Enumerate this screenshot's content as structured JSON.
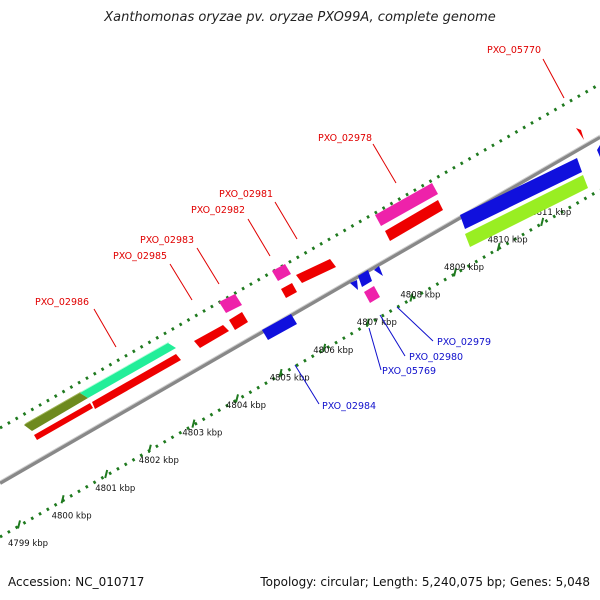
{
  "title": "Xanthomonas oryzae pv. oryzae PXO99A, complete genome",
  "footer": {
    "accession": "Accession: NC_010717",
    "summary": "Topology: circular; Length: 5,240,075 bp; Genes: 5,048"
  },
  "colors": {
    "axis": "#888888",
    "tick_track": "#1f7a1f",
    "forward_label": "#e00000",
    "reverse_label": "#1010cc",
    "red_gene": "#ee0000",
    "magenta_gene": "#ee22aa",
    "blue_gene": "#1010dd",
    "olive_gene": "#6e8a1e",
    "aqua_gene": "#22ee99",
    "lime_gene": "#99ee22"
  },
  "kbp_ticks": [
    "4799 kbp",
    "4800 kbp",
    "4801 kbp",
    "4802 kbp",
    "4803 kbp",
    "4804 kbp",
    "4805 kbp",
    "4806 kbp",
    "4807 kbp",
    "4808 kbp",
    "4809 kbp",
    "4810 kbp",
    "4811 kbp"
  ],
  "forward_labels": [
    "PXO_02986",
    "PXO_02985",
    "PXO_02983",
    "PXO_02982",
    "PXO_02981",
    "PXO_02978",
    "PXO_05770"
  ],
  "reverse_labels": [
    "PXO_02984",
    "PXO_05769",
    "PXO_02980",
    "PXO_02979"
  ]
}
